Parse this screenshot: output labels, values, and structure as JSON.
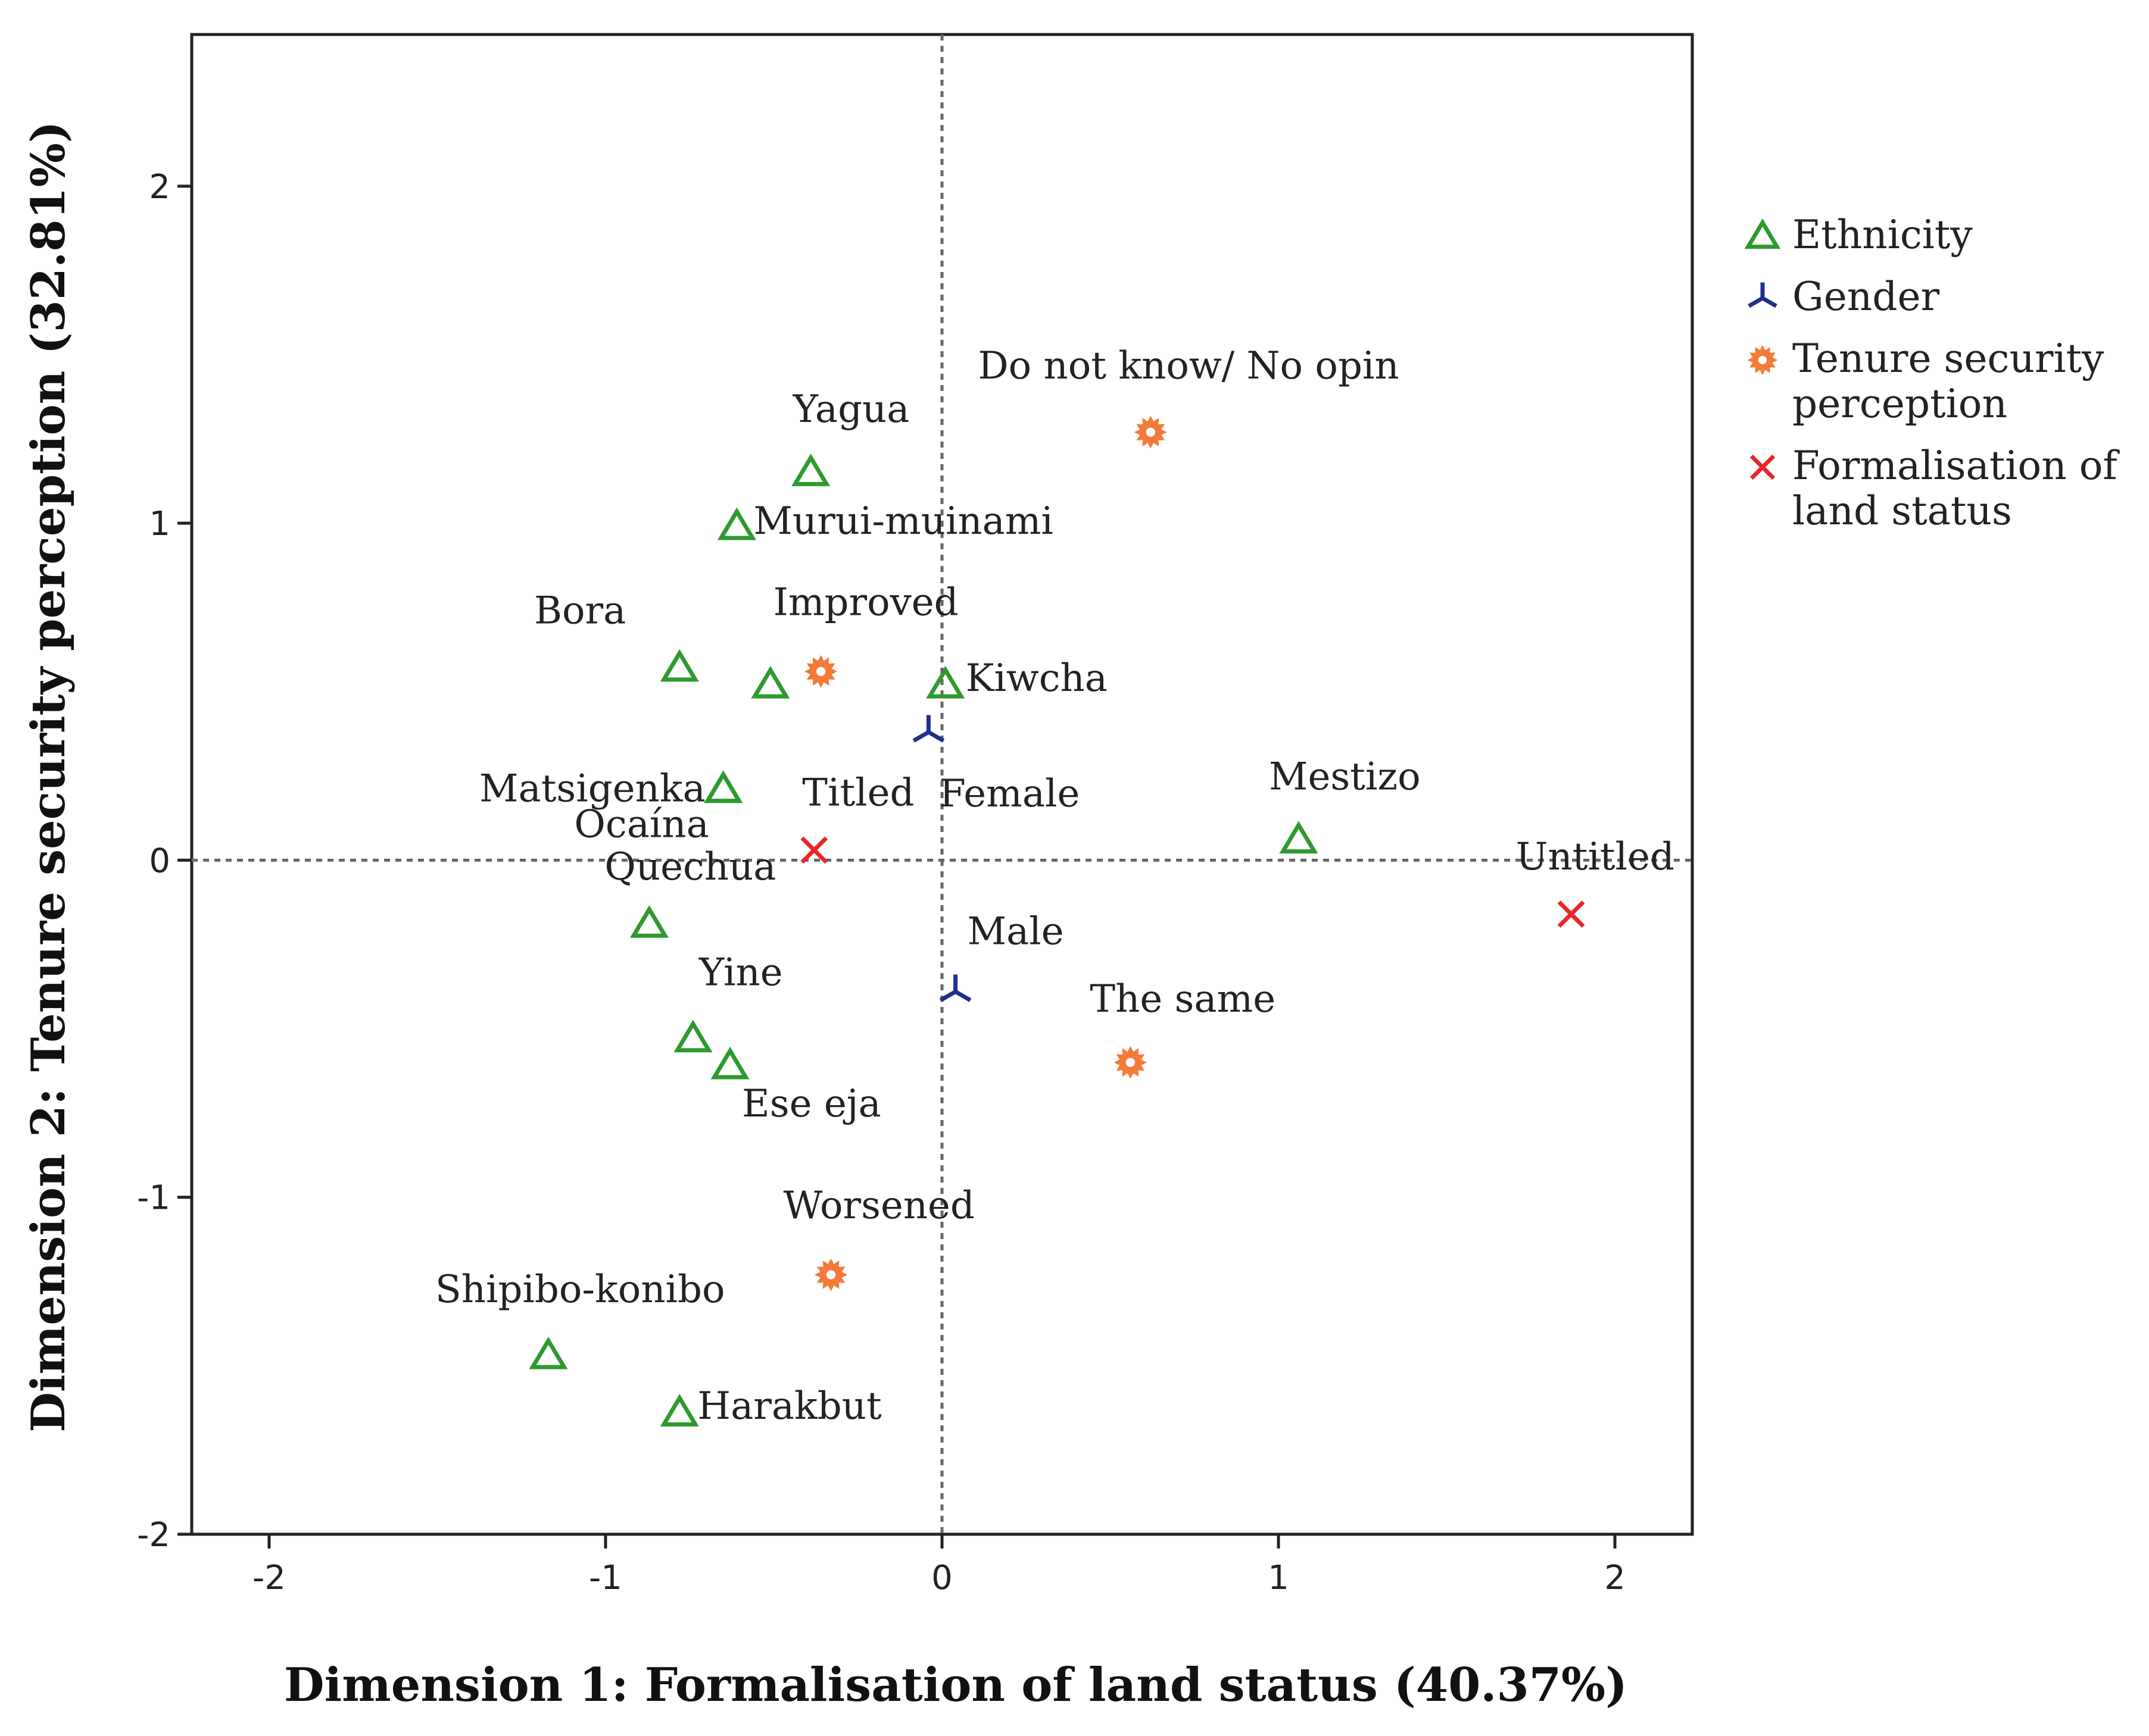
{
  "chart_data": {
    "type": "scatter",
    "title": "",
    "xlabel": "Dimension 1: Formalisation of land status (40.37%)",
    "ylabel": "Dimension 2: Tenure security perception (32.81%)",
    "xlim": [
      -2.23,
      2.23
    ],
    "ylim": [
      -2,
      2.45
    ],
    "xticks": [
      -2,
      -1,
      0,
      1,
      2
    ],
    "yticks": [
      -2,
      -1,
      0,
      1,
      2
    ],
    "reference_lines": [
      {
        "axis": "x",
        "value": 0
      },
      {
        "axis": "y",
        "value": 0
      }
    ],
    "legend_position": "right",
    "series": [
      {
        "name": "Ethnicity",
        "marker": "triangle",
        "color": "#2e9a2e",
        "points": [
          {
            "label": "Yagua",
            "x": -0.39,
            "y": 1.15
          },
          {
            "label": "Murui-muinami",
            "x": -0.61,
            "y": 0.99
          },
          {
            "label": "Bora",
            "x": -0.78,
            "y": 0.57
          },
          {
            "label": "",
            "x": -0.51,
            "y": 0.52
          },
          {
            "label": "Kiwcha",
            "x": 0.01,
            "y": 0.52
          },
          {
            "label": "Ocaína",
            "x": -0.65,
            "y": 0.21
          },
          {
            "label": "Matsigenka",
            "x": -0.65,
            "y": 0.21
          },
          {
            "label": "Mestizo",
            "x": 1.06,
            "y": 0.06
          },
          {
            "label": "Quechua",
            "x": -0.87,
            "y": -0.19
          },
          {
            "label": "Yine",
            "x": -0.74,
            "y": -0.53
          },
          {
            "label": "Ese eja",
            "x": -0.63,
            "y": -0.61
          },
          {
            "label": "Shipibo-konibo",
            "x": -1.17,
            "y": -1.47
          },
          {
            "label": "Harakbut",
            "x": -0.78,
            "y": -1.64
          }
        ]
      },
      {
        "name": "Gender",
        "marker": "tri-down",
        "color": "#1f2f8a",
        "points": [
          {
            "label": "Female",
            "x": -0.04,
            "y": 0.38
          },
          {
            "label": "Male",
            "x": 0.04,
            "y": -0.39
          }
        ]
      },
      {
        "name": "Tenure security perception",
        "marker": "star",
        "color": "#f47a3a",
        "points": [
          {
            "label": "Do not know/ No opin",
            "x": 0.62,
            "y": 1.27
          },
          {
            "label": "Improved",
            "x": -0.36,
            "y": 0.56
          },
          {
            "label": "The same",
            "x": 0.56,
            "y": -0.6
          },
          {
            "label": "Worsened",
            "x": -0.33,
            "y": -1.23
          }
        ]
      },
      {
        "name": "Formalisation of land status",
        "marker": "x",
        "color": "#e8262a",
        "points": [
          {
            "label": "Titled",
            "x": -0.38,
            "y": 0.03
          },
          {
            "label": "Untitled",
            "x": 1.87,
            "y": -0.16
          }
        ]
      }
    ],
    "legend": {
      "entries": [
        {
          "series": 0,
          "lines": [
            "Ethnicity"
          ]
        },
        {
          "series": 1,
          "lines": [
            "Gender"
          ]
        },
        {
          "series": 2,
          "lines": [
            "Tenure security",
            "perception"
          ]
        },
        {
          "series": 3,
          "lines": [
            "Formalisation of",
            "land status"
          ]
        }
      ]
    }
  }
}
